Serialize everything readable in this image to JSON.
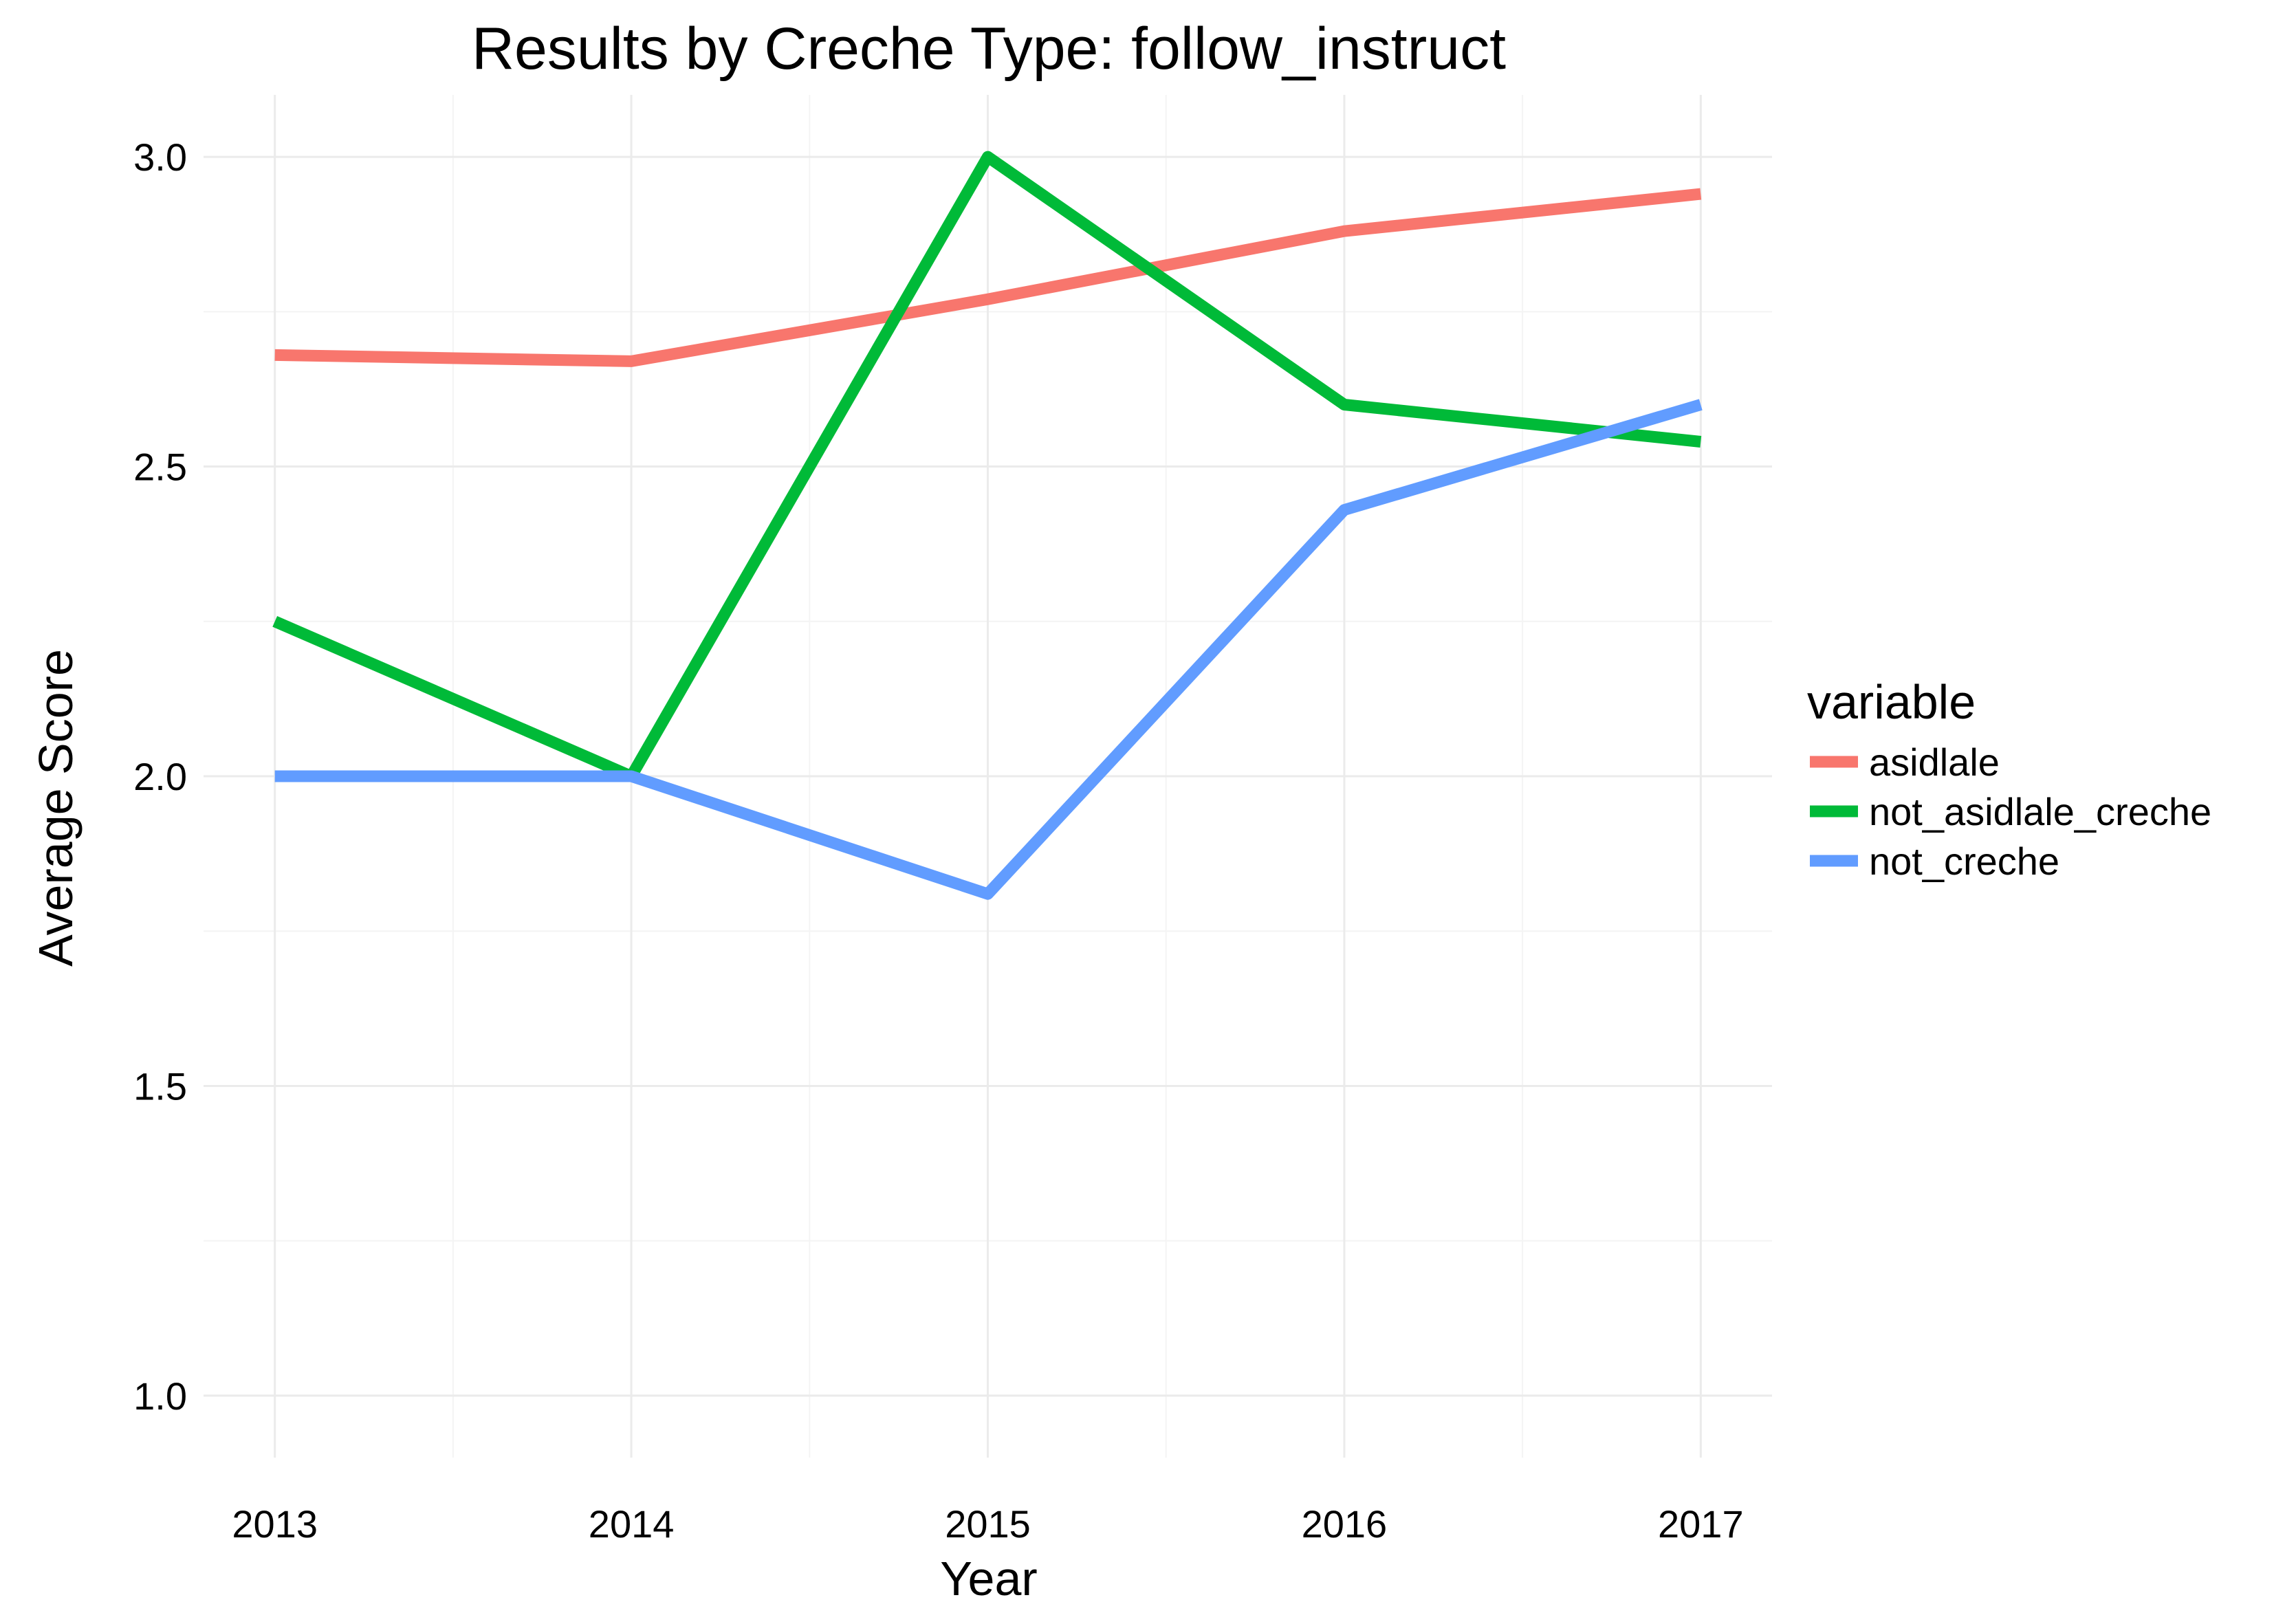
{
  "chart_data": {
    "type": "line",
    "title": "Results by Creche Type: follow_instruct",
    "xlabel": "Year",
    "ylabel": "Average Score",
    "x": [
      2013,
      2014,
      2015,
      2016,
      2017
    ],
    "x_tick_labels": [
      "2013",
      "2014",
      "2015",
      "2016",
      "2017"
    ],
    "ylim": [
      0.9,
      3.1
    ],
    "y_ticks": [
      1.0,
      1.5,
      2.0,
      2.5,
      3.0
    ],
    "y_tick_labels": [
      "1.0",
      "1.5",
      "2.0",
      "2.5",
      "3.0"
    ],
    "grid": true,
    "legend": {
      "title": "variable",
      "placement": "right"
    },
    "series": [
      {
        "name": "asidlale",
        "color": "#F8766D",
        "values": [
          2.68,
          2.67,
          2.77,
          2.88,
          2.94
        ]
      },
      {
        "name": "not_asidlale_creche",
        "color": "#00BA38",
        "values": [
          2.25,
          2.0,
          3.0,
          2.6,
          2.54
        ]
      },
      {
        "name": "not_creche",
        "color": "#619CFF",
        "values": [
          2.0,
          2.0,
          1.81,
          2.43,
          2.6
        ]
      }
    ]
  }
}
